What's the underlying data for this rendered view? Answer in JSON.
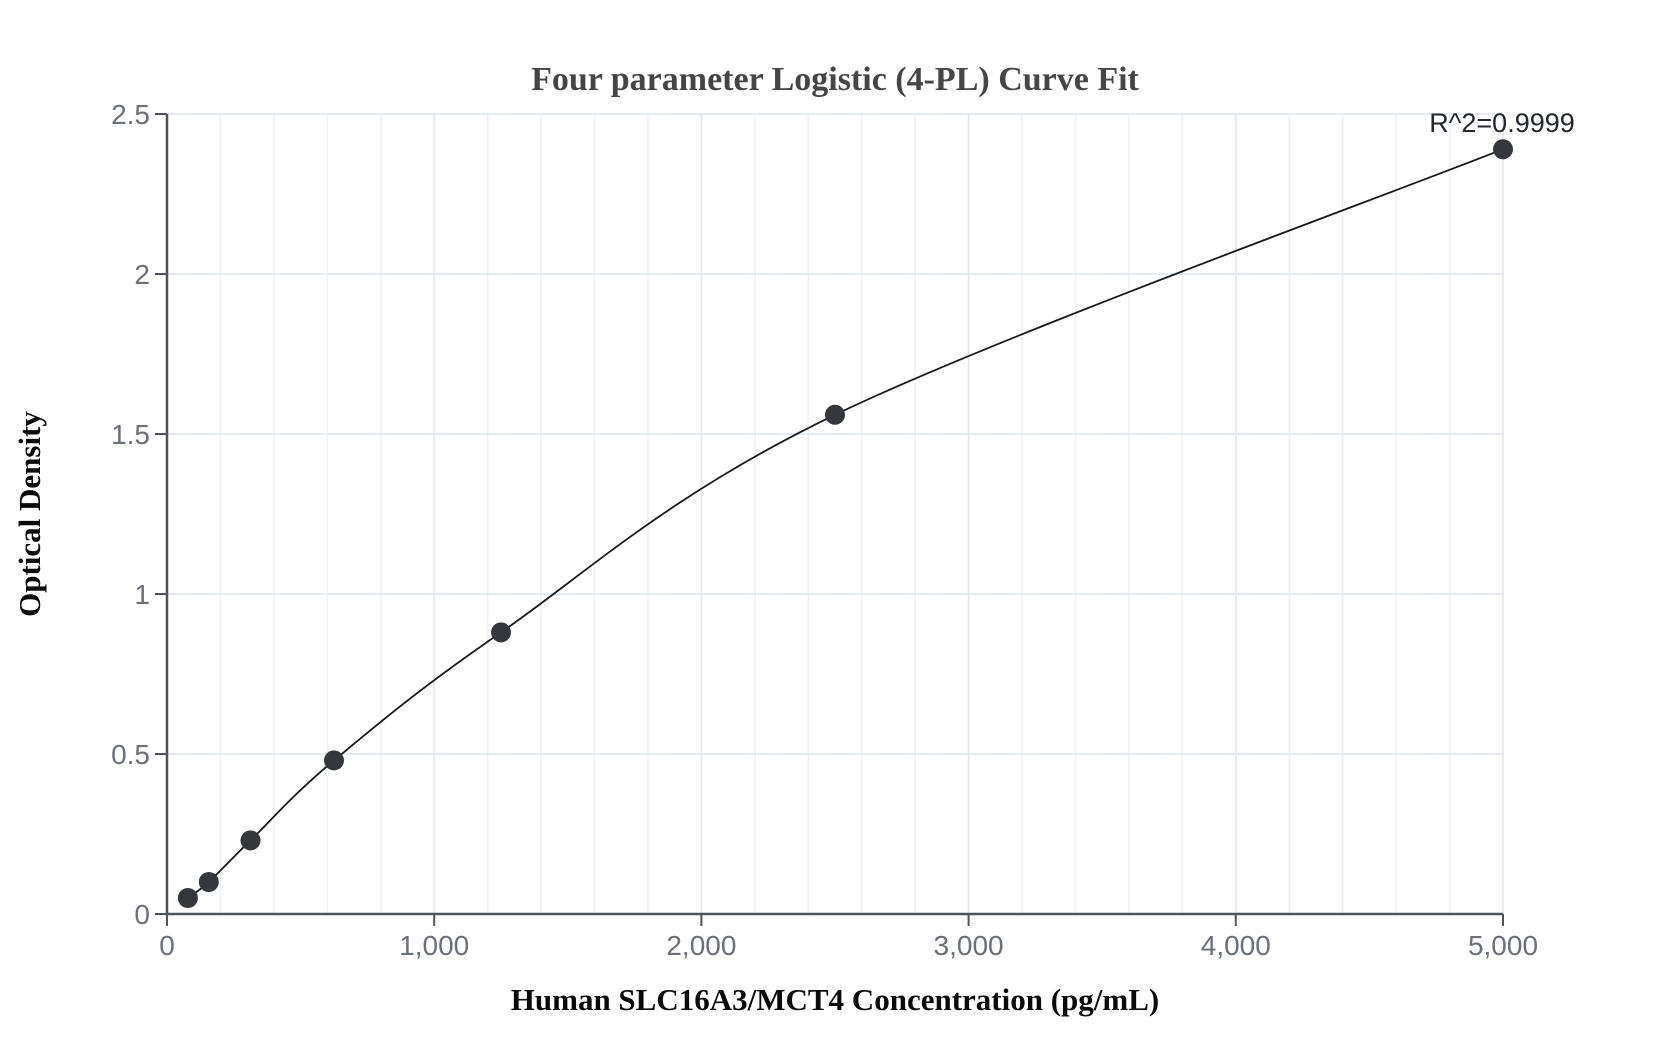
{
  "page": {
    "background_color": "#ffffff"
  },
  "chart_data": {
    "type": "scatter",
    "subtype": "standard-curve-4pl-fit",
    "title": "Four parameter Logistic (4-PL) Curve Fit",
    "xlabel": "Human SLC16A3/MCT4 Concentration (pg/mL)",
    "ylabel": "Optical Density",
    "annotation": "R^2=0.9999",
    "r_squared": 0.9999,
    "x": [
      78.125,
      156.25,
      312.5,
      625,
      1250,
      2500,
      5000
    ],
    "y": [
      0.05,
      0.1,
      0.23,
      0.48,
      0.88,
      1.56,
      2.39
    ],
    "xlim": [
      0,
      5000
    ],
    "ylim": [
      0,
      2.5
    ],
    "x_ticks": {
      "values": [
        0,
        1000,
        2000,
        3000,
        4000,
        5000
      ],
      "labels": [
        "0",
        "1,000",
        "2,000",
        "3,000",
        "4,000",
        "5,000"
      ]
    },
    "y_ticks": {
      "values": [
        0,
        0.5,
        1,
        1.5,
        2,
        2.5
      ],
      "labels": [
        "0",
        "0.5",
        "1",
        "1.5",
        "2",
        "2.5"
      ]
    },
    "x_minor_grid_step": 200,
    "grid": "on",
    "legend": "none",
    "curve": "smooth line through points, fit to markers",
    "colors": {
      "background": "#ffffff",
      "axis_line": "#4e535d",
      "tick_label": "#6a6f78",
      "grid_major": "#e2e7f2",
      "grid_minor": "#eef1f8",
      "curve_line": "#17181a",
      "data_point": "#34373b",
      "title_text": "#454545",
      "axis_title_text": "#0a0a0a",
      "annotation_text": "#24272e"
    }
  }
}
